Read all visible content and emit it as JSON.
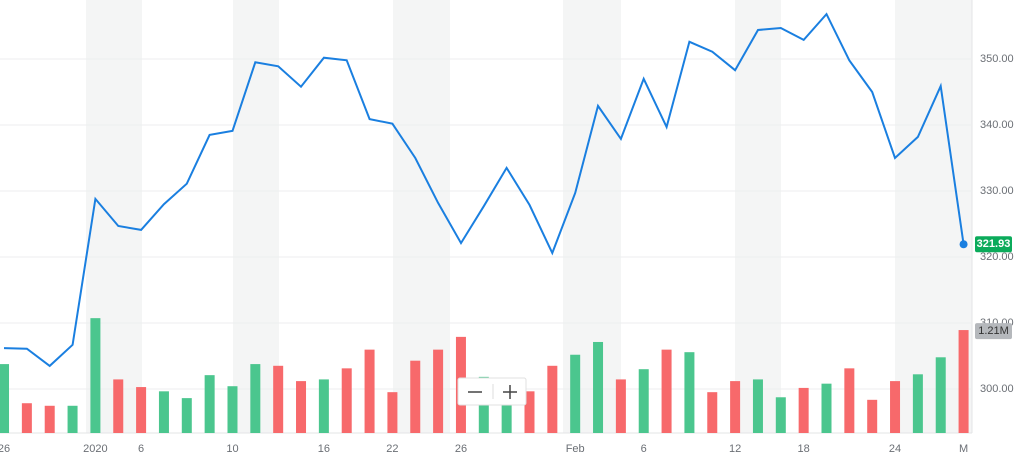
{
  "chart_data": {
    "type": "line",
    "categories": [
      "26",
      null,
      null,
      null,
      "2020",
      null,
      "6",
      null,
      null,
      null,
      "10",
      null,
      null,
      null,
      "16",
      null,
      null,
      "22",
      null,
      null,
      "26",
      null,
      null,
      null,
      null,
      "Feb",
      null,
      null,
      "6",
      null,
      null,
      null,
      "12",
      null,
      null,
      "18",
      null,
      null,
      null,
      "24",
      null,
      null,
      "M"
    ],
    "values": [
      306.2,
      306.1,
      303.5,
      306.7,
      328.8,
      324.7,
      324.1,
      328.0,
      331.1,
      338.5,
      339.1,
      349.5,
      348.9,
      345.8,
      350.2,
      349.8,
      340.9,
      340.2,
      335.0,
      328.2,
      322.1,
      327.7,
      333.5,
      327.9,
      320.6,
      329.7,
      342.9,
      337.9,
      347.0,
      339.7,
      352.6,
      351.1,
      348.3,
      354.4,
      354.7,
      352.9,
      356.8,
      349.8,
      345.0,
      335.0,
      338.2,
      345.9,
      321.93
    ],
    "color": "#1a7fe0",
    "ylim": [
      293.33,
      358.94
    ],
    "yticks": [
      {
        "value": 300,
        "label": "300.00"
      },
      {
        "value": 310,
        "label": "310.00"
      },
      {
        "value": 320,
        "label": "320.00"
      },
      {
        "value": 330,
        "label": "330.00"
      },
      {
        "value": 340,
        "label": "340.00"
      },
      {
        "value": 350,
        "label": "350.00"
      }
    ],
    "grid": true,
    "last_label_color": "#0bab5b",
    "volume": {
      "values": [
        0.81,
        0.35,
        0.32,
        0.32,
        1.35,
        0.63,
        0.54,
        0.49,
        0.41,
        0.68,
        0.55,
        0.81,
        0.79,
        0.61,
        0.63,
        0.76,
        0.98,
        0.48,
        0.85,
        0.98,
        1.13,
        0.66,
        0.45,
        0.49,
        0.79,
        0.92,
        1.07,
        0.63,
        0.75,
        0.98,
        0.95,
        0.48,
        0.61,
        0.63,
        0.42,
        0.53,
        0.58,
        0.76,
        0.39,
        0.61,
        0.69,
        0.89,
        1.21
      ],
      "value_labels": [
        null,
        null,
        null,
        null,
        null,
        null,
        null,
        null,
        null,
        null,
        null,
        null,
        null,
        null,
        null,
        null,
        null,
        null,
        null,
        null,
        null,
        null,
        null,
        null,
        null,
        null,
        null,
        null,
        null,
        null,
        null,
        null,
        null,
        null,
        null,
        null,
        null,
        null,
        null,
        null,
        null,
        null,
        "1.21M"
      ],
      "colors": [
        "#4bc68e",
        "#f7696b",
        "#f7696b",
        "#4bc68e",
        "#4bc68e",
        "#f7696b",
        "#f7696b",
        "#4bc68e",
        "#4bc68e",
        "#4bc68e",
        "#4bc68e",
        "#4bc68e",
        "#f7696b",
        "#f7696b",
        "#4bc68e",
        "#f7696b",
        "#f7696b",
        "#f7696b",
        "#f7696b",
        "#f7696b",
        "#f7696b",
        "#4bc68e",
        "#4bc68e",
        "#f7696b",
        "#f7696b",
        "#4bc68e",
        "#4bc68e",
        "#f7696b",
        "#4bc68e",
        "#f7696b",
        "#4bc68e",
        "#f7696b",
        "#f7696b",
        "#4bc68e",
        "#4bc68e",
        "#f7696b",
        "#4bc68e",
        "#f7696b",
        "#f7696b",
        "#f7696b",
        "#4bc68e",
        "#4bc68e",
        "#f7696b"
      ],
      "ylim": [
        0,
        5.09
      ],
      "label_color": "#b5b8bc"
    }
  }
}
